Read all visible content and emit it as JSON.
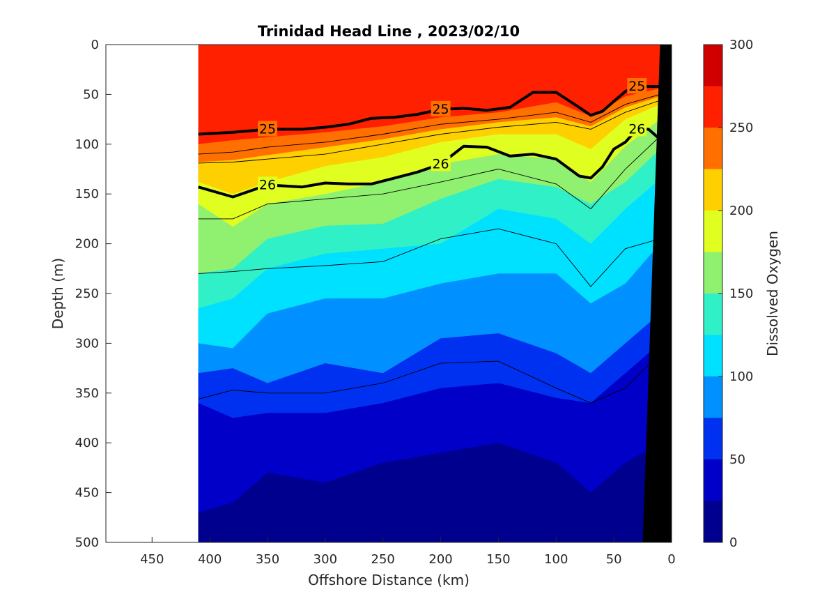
{
  "chart_data": {
    "type": "contour",
    "title": "Trinidad Head Line , 2023/02/10",
    "xlabel": "Offshore Distance (km)",
    "ylabel": "Depth (m)",
    "colorbar_label": "Dissolved Oxygen",
    "xlim": [
      490,
      0
    ],
    "ylim": [
      0,
      500
    ],
    "x_reversed": true,
    "y_reversed": true,
    "x_ticks": [
      450,
      400,
      350,
      300,
      250,
      200,
      150,
      100,
      50,
      0
    ],
    "y_ticks": [
      0,
      50,
      100,
      150,
      200,
      250,
      300,
      350,
      400,
      450,
      500
    ],
    "colorbar_ticks": [
      0,
      50,
      100,
      150,
      200,
      250,
      300
    ],
    "colorbar_levels": [
      {
        "min": 0,
        "max": 25,
        "color": "#00008f"
      },
      {
        "min": 25,
        "max": 50,
        "color": "#0000c8"
      },
      {
        "min": 50,
        "max": 75,
        "color": "#0030f0"
      },
      {
        "min": 75,
        "max": 100,
        "color": "#0090ff"
      },
      {
        "min": 100,
        "max": 125,
        "color": "#00e0ff"
      },
      {
        "min": 125,
        "max": 150,
        "color": "#30f0c8"
      },
      {
        "min": 150,
        "max": 175,
        "color": "#90f070"
      },
      {
        "min": 175,
        "max": 200,
        "color": "#e0ff20"
      },
      {
        "min": 200,
        "max": 225,
        "color": "#ffd000"
      },
      {
        "min": 225,
        "max": 250,
        "color": "#ff7000"
      },
      {
        "min": 250,
        "max": 275,
        "color": "#ff2000"
      },
      {
        "min": 275,
        "max": 300,
        "color": "#d00000"
      }
    ],
    "section_x_range_km": [
      410,
      10
    ],
    "density_contours": [
      {
        "label": "25",
        "x": [
          410,
          380,
          350,
          320,
          300,
          280,
          260,
          240,
          220,
          200,
          180,
          160,
          140,
          120,
          100,
          80,
          70,
          60,
          50,
          40,
          30,
          20,
          10
        ],
        "y": [
          90,
          88,
          85,
          85,
          83,
          80,
          74,
          73,
          70,
          65,
          64,
          66,
          63,
          48,
          48,
          63,
          71,
          67,
          57,
          47,
          42,
          42,
          42
        ]
      },
      {
        "label": "26",
        "x": [
          410,
          380,
          350,
          320,
          300,
          280,
          260,
          240,
          220,
          200,
          180,
          160,
          140,
          120,
          100,
          80,
          70,
          60,
          50,
          40,
          30,
          20,
          10
        ],
        "y": [
          143,
          153,
          141,
          143,
          139,
          140,
          140,
          134,
          128,
          120,
          102,
          103,
          112,
          110,
          115,
          132,
          134,
          123,
          105,
          98,
          85,
          85,
          95
        ]
      }
    ],
    "oxygen_boundaries": [
      {
        "level": 250,
        "x": [
          410,
          380,
          350,
          300,
          250,
          200,
          150,
          100,
          70,
          40,
          10
        ],
        "y": [
          100,
          96,
          93,
          88,
          82,
          73,
          68,
          58,
          72,
          52,
          44
        ]
      },
      {
        "level": 225,
        "x": [
          410,
          380,
          350,
          300,
          250,
          200,
          150,
          100,
          70,
          40,
          10
        ],
        "y": [
          118,
          116,
          111,
          103,
          95,
          85,
          78,
          73,
          82,
          63,
          52
        ]
      },
      {
        "level": 200,
        "x": [
          410,
          380,
          350,
          300,
          250,
          200,
          150,
          100,
          70,
          40,
          10
        ],
        "y": [
          138,
          150,
          138,
          122,
          113,
          98,
          90,
          90,
          105,
          75,
          60
        ]
      },
      {
        "level": 175,
        "x": [
          410,
          380,
          350,
          300,
          250,
          200,
          150,
          100,
          70,
          40,
          10
        ],
        "y": [
          160,
          183,
          160,
          150,
          138,
          120,
          110,
          115,
          138,
          102,
          75
        ]
      },
      {
        "level": 150,
        "x": [
          410,
          380,
          350,
          300,
          250,
          200,
          150,
          100,
          70,
          40,
          10
        ],
        "y": [
          230,
          225,
          195,
          182,
          180,
          155,
          135,
          143,
          160,
          138,
          105
        ]
      },
      {
        "level": 125,
        "x": [
          410,
          380,
          350,
          300,
          250,
          200,
          150,
          100,
          70,
          40,
          10
        ],
        "y": [
          265,
          255,
          225,
          210,
          205,
          200,
          165,
          175,
          200,
          165,
          135
        ]
      },
      {
        "level": 100,
        "x": [
          410,
          380,
          350,
          300,
          250,
          200,
          150,
          100,
          70,
          40,
          10
        ],
        "y": [
          300,
          305,
          270,
          255,
          255,
          240,
          230,
          230,
          260,
          240,
          200
        ]
      },
      {
        "level": 75,
        "x": [
          410,
          380,
          350,
          300,
          250,
          200,
          150,
          100,
          70,
          40,
          10
        ],
        "y": [
          330,
          325,
          340,
          320,
          330,
          295,
          290,
          310,
          330,
          300,
          270
        ]
      },
      {
        "level": 50,
        "x": [
          410,
          380,
          350,
          300,
          250,
          200,
          150,
          100,
          70,
          40,
          10
        ],
        "y": [
          360,
          375,
          370,
          370,
          360,
          345,
          340,
          355,
          360,
          330,
          300
        ]
      },
      {
        "level": 25,
        "x": [
          410,
          380,
          350,
          300,
          250,
          200,
          150,
          100,
          70,
          40,
          10
        ],
        "y": [
          470,
          460,
          430,
          440,
          420,
          410,
          400,
          420,
          450,
          420,
          400
        ]
      }
    ],
    "oxygen_isolines": [
      {
        "x": [
          410,
          380,
          350,
          300,
          250,
          200,
          150,
          100,
          70,
          40,
          10
        ],
        "y": [
          119,
          118,
          115,
          110,
          100,
          90,
          83,
          78,
          85,
          68,
          56
        ]
      },
      {
        "x": [
          410,
          380,
          350,
          300,
          250,
          200,
          150,
          100,
          70,
          40,
          10
        ],
        "y": [
          110,
          108,
          103,
          98,
          90,
          80,
          75,
          68,
          78,
          60,
          50
        ]
      },
      {
        "x": [
          410,
          380,
          350,
          300,
          250,
          200,
          150,
          100,
          70,
          40,
          10
        ],
        "y": [
          175,
          175,
          160,
          155,
          150,
          138,
          125,
          140,
          165,
          125,
          92
        ]
      },
      {
        "x": [
          410,
          380,
          350,
          300,
          250,
          200,
          150,
          100,
          70,
          40,
          10
        ],
        "y": [
          230,
          228,
          225,
          222,
          218,
          195,
          185,
          200,
          243,
          205,
          195
        ]
      },
      {
        "x": [
          410,
          380,
          350,
          300,
          250,
          200,
          150,
          100,
          70,
          40,
          10
        ],
        "y": [
          356,
          347,
          350,
          350,
          340,
          320,
          318,
          345,
          360,
          345,
          310
        ]
      }
    ],
    "bathymetry": {
      "x": [
        25,
        10,
        0
      ],
      "y": [
        500,
        0,
        0
      ]
    }
  }
}
